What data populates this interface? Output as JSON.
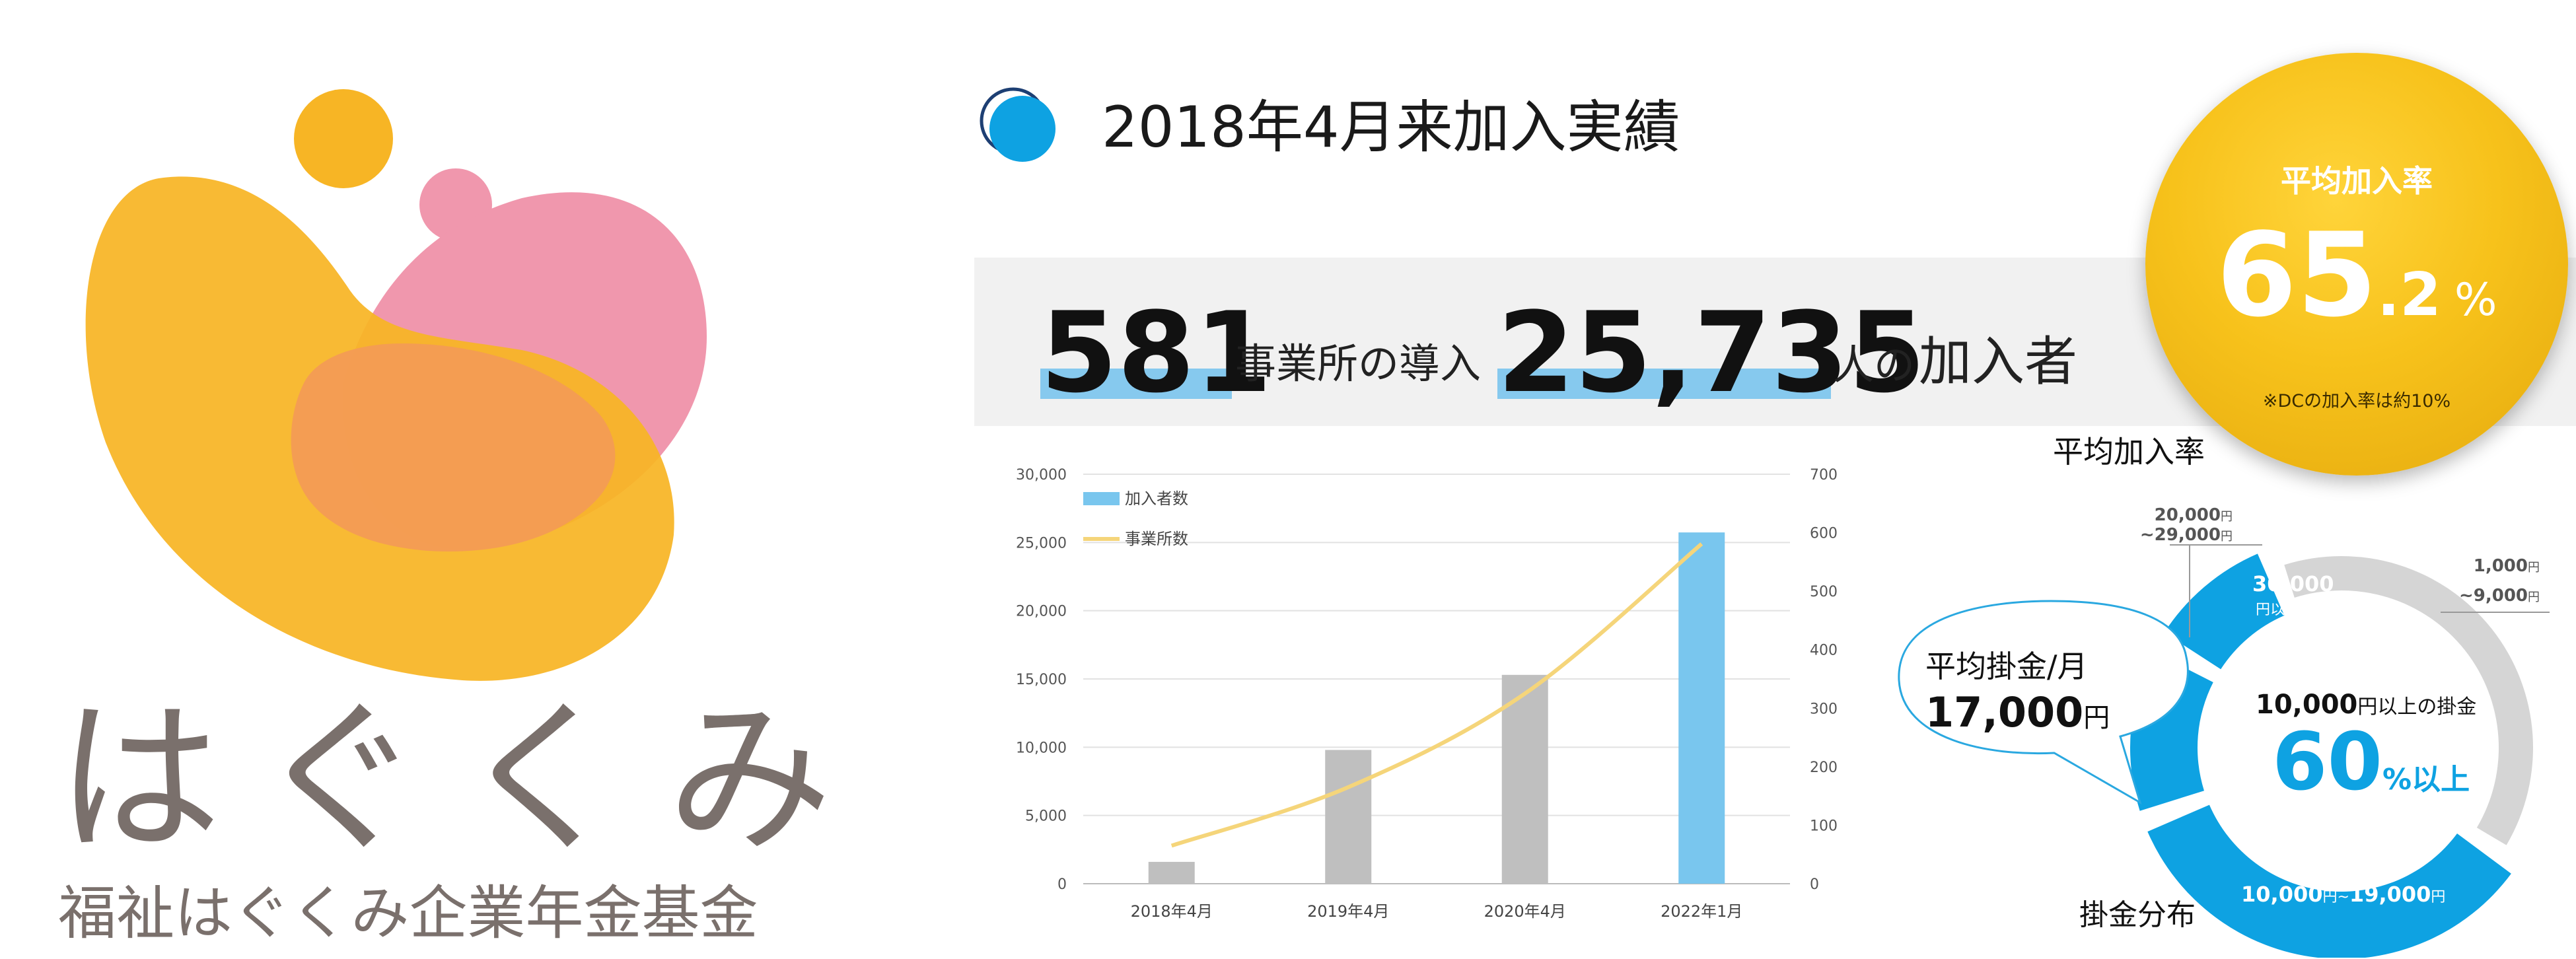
{
  "brand": {
    "name": "はぐくみ",
    "full_name": "福祉はぐくみ企業年金基金"
  },
  "heading": {
    "title": "2018年4月来加入実績"
  },
  "stats": {
    "offices": "581",
    "offices_label": "事業所の導入",
    "members": "25,735",
    "members_label_1": "人の",
    "members_label_2": "加入者"
  },
  "rate": {
    "label": "平均加入率",
    "value_int": "65",
    "value_dec": ".2",
    "unit": "%",
    "note": "※DCの加入率は約10%",
    "caption": "平均加入率"
  },
  "colors": {
    "accent_blue": "#0ea2e2",
    "bar_gray": "#bfbfbf",
    "bar_blue": "#79c6ee",
    "line_yellow": "#f5d57a",
    "rate_gold": "#f7c21b"
  },
  "chart_data": {
    "type": "bar",
    "categories": [
      "2018年4月",
      "2019年4月",
      "2020年4月",
      "2022年1月"
    ],
    "series": [
      {
        "name": "加入者数",
        "kind": "bar",
        "axis": "left",
        "values": [
          1600,
          9800,
          15300,
          25735
        ],
        "colors": [
          "#bfbfbf",
          "#bfbfbf",
          "#bfbfbf",
          "#79c6ee"
        ]
      },
      {
        "name": "事業所数",
        "kind": "line",
        "axis": "right",
        "values": [
          65,
          165,
          325,
          581
        ],
        "color": "#f5d57a"
      }
    ],
    "y_left": {
      "ylim": [
        0,
        30000
      ],
      "ticks": [
        "0",
        "5,000",
        "10,000",
        "15,000",
        "20,000",
        "25,000",
        "30,000"
      ]
    },
    "y_right": {
      "ylim": [
        0,
        700
      ],
      "ticks": [
        "0",
        "100",
        "200",
        "300",
        "400",
        "500",
        "600",
        "700"
      ]
    },
    "grid": true,
    "legend_position": "top-left"
  },
  "donut": {
    "avg_label": "平均掛金/月",
    "avg_value": "17,000",
    "avg_unit": "円",
    "center_top_value": "10,000",
    "center_top_suffix": "円以上の掛金",
    "center_big": "60",
    "center_big_suffix": "%以上",
    "caption": "掛金分布",
    "segments": [
      {
        "label_value": "30,000",
        "label_suffix": "円以上",
        "share": 11,
        "color": "#0ea2e2"
      },
      {
        "label_value": "20,000",
        "label_value_unit": "円",
        "label_value_2": "~29,000",
        "label_value_2_unit": "円",
        "share": 14,
        "color": "#0ea2e2"
      },
      {
        "label_value": "10,000",
        "label_suffix_a": "円~",
        "label_value_b": "19,000",
        "label_suffix_b": "円",
        "share": 35,
        "color": "#0ea2e2"
      },
      {
        "label_value": "1,000",
        "label_value_unit": "円",
        "label_value_2": "~9,000",
        "label_value_2_unit": "円",
        "share": 40,
        "color": "#d5d5d5"
      }
    ]
  }
}
